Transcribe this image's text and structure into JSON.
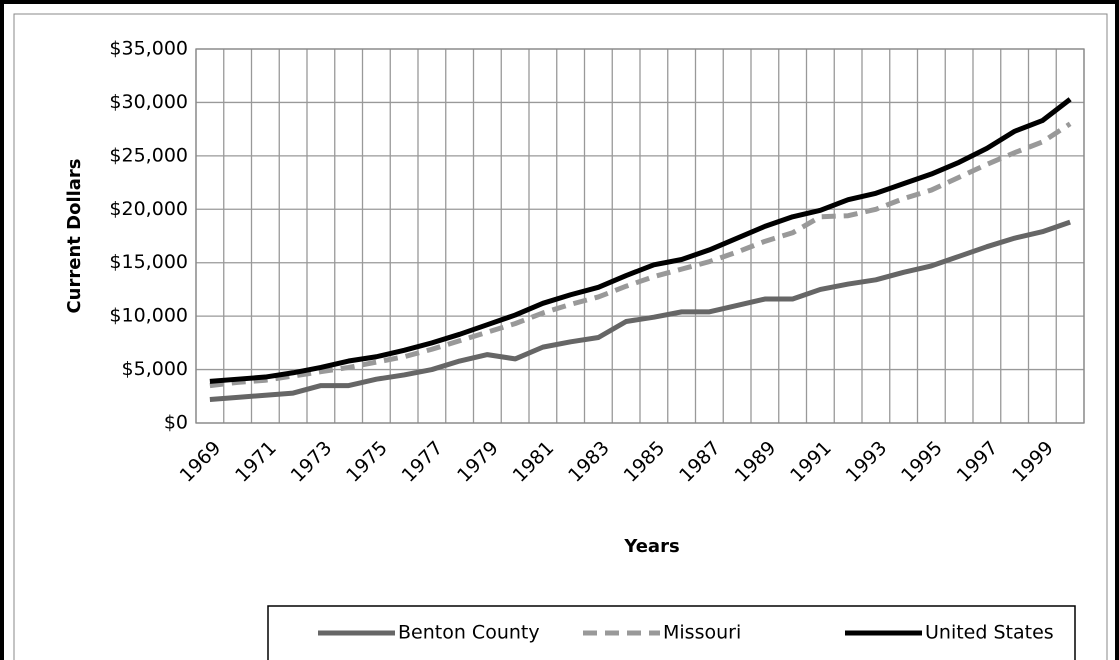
{
  "chart_data": {
    "type": "line",
    "y_label": "Current Dollars",
    "x_label": "Years",
    "categories": [
      "1969",
      null,
      "1971",
      null,
      "1973",
      null,
      "1975",
      null,
      "1977",
      null,
      "1979",
      null,
      "1981",
      null,
      "1983",
      null,
      "1985",
      null,
      "1987",
      null,
      "1989",
      null,
      "1991",
      null,
      "1993",
      null,
      "1995",
      null,
      "1997",
      null,
      "1999",
      null
    ],
    "series": [
      {
        "name": "Benton County",
        "color": "#666666",
        "dash": "solid",
        "values": [
          2200,
          2400,
          2600,
          2800,
          3500,
          3500,
          4100,
          4500,
          5000,
          5800,
          6400,
          6000,
          7100,
          7600,
          8000,
          9500,
          9900,
          10400,
          10400,
          11000,
          11600,
          11600,
          12500,
          13000,
          13400,
          14100,
          14700,
          15600,
          16500,
          17300,
          17900,
          18800
        ]
      },
      {
        "name": "Missouri",
        "color": "#999999",
        "dash": "dashed",
        "values": [
          3500,
          3800,
          4000,
          4400,
          4800,
          5200,
          5700,
          6200,
          6900,
          7700,
          8500,
          9300,
          10300,
          11100,
          11800,
          12800,
          13700,
          14400,
          15100,
          16000,
          17000,
          17800,
          19300,
          19400,
          20000,
          21000,
          21800,
          23000,
          24200,
          25300,
          26300,
          28000
        ]
      },
      {
        "name": "United States",
        "color": "#000000",
        "dash": "solid",
        "values": [
          3900,
          4100,
          4300,
          4700,
          5200,
          5800,
          6200,
          6800,
          7500,
          8300,
          9200,
          10100,
          11200,
          12000,
          12700,
          13800,
          14800,
          15300,
          16200,
          17300,
          18400,
          19300,
          19900,
          20900,
          21500,
          22400,
          23300,
          24400,
          25700,
          27300,
          28300,
          30300
        ]
      }
    ],
    "ylim": [
      0,
      35000
    ],
    "yticks": [
      {
        "value": 0,
        "label": "$0"
      },
      {
        "value": 5000,
        "label": "$5,000"
      },
      {
        "value": 10000,
        "label": "$10,000"
      },
      {
        "value": 15000,
        "label": "$15,000"
      },
      {
        "value": 20000,
        "label": "$20,000"
      },
      {
        "value": 25000,
        "label": "$25,000"
      },
      {
        "value": 30000,
        "label": "$30,000"
      },
      {
        "value": 35000,
        "label": "$35,000"
      }
    ],
    "grid": true,
    "legend": "bottom"
  }
}
